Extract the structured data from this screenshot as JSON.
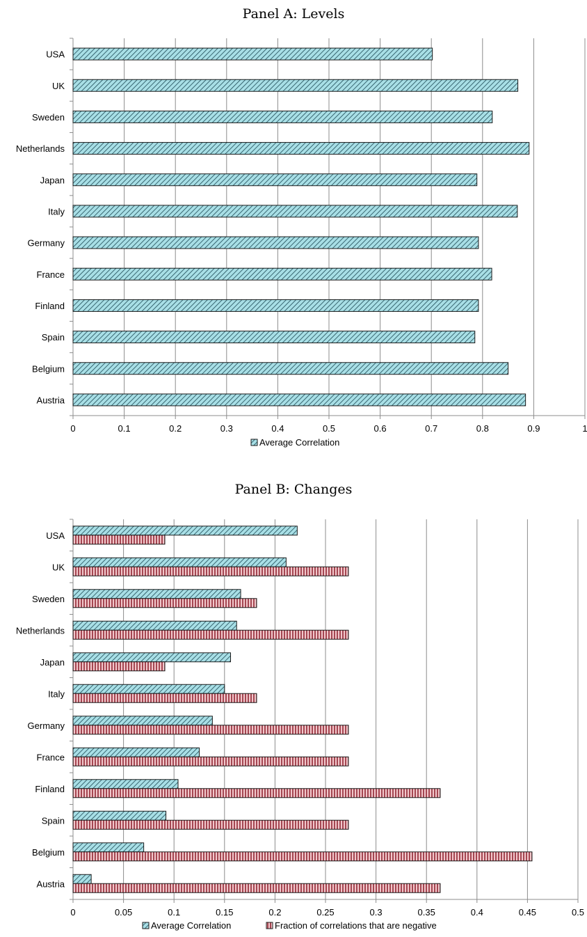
{
  "chart_data": [
    {
      "type": "bar",
      "orientation": "horizontal",
      "title": "Panel A: Levels",
      "xlim": [
        0,
        1
      ],
      "xticks": [
        "0",
        "0.1",
        "0.2",
        "0.3",
        "0.4",
        "0.5",
        "0.6",
        "0.7",
        "0.8",
        "0.9",
        "1"
      ],
      "grid": "vertical",
      "legend_position": "bottom",
      "categories": [
        "USA",
        "UK",
        "Sweden",
        "Netherlands",
        "Japan",
        "Italy",
        "Germany",
        "France",
        "Finland",
        "Spain",
        "Belgium",
        "Austria"
      ],
      "series": [
        {
          "name": "Average Correlation",
          "color": "#9fd8df",
          "values": [
            0.702,
            0.869,
            0.819,
            0.891,
            0.789,
            0.868,
            0.792,
            0.818,
            0.792,
            0.785,
            0.85,
            0.884
          ]
        }
      ]
    },
    {
      "type": "bar",
      "orientation": "horizontal",
      "title": "Panel B: Changes",
      "xlim": [
        0,
        0.5
      ],
      "xticks": [
        "0",
        "0.05",
        "0.1",
        "0.15",
        "0.2",
        "0.25",
        "0.3",
        "0.35",
        "0.4",
        "0.45",
        "0.5"
      ],
      "grid": "vertical",
      "legend_position": "bottom",
      "categories": [
        "USA",
        "UK",
        "Sweden",
        "Netherlands",
        "Japan",
        "Italy",
        "Germany",
        "France",
        "Finland",
        "Spain",
        "Belgium",
        "Austria"
      ],
      "series": [
        {
          "name": "Average Correlation",
          "color": "#9fd8df",
          "values": [
            0.222,
            0.211,
            0.166,
            0.162,
            0.156,
            0.15,
            0.138,
            0.125,
            0.104,
            0.092,
            0.07,
            0.018
          ]
        },
        {
          "name": "Fraction of correlations that are negative",
          "color": "#d98894",
          "values": [
            0.0909,
            0.2727,
            0.1818,
            0.2727,
            0.0909,
            0.1818,
            0.2727,
            0.2727,
            0.3636,
            0.2727,
            0.4545,
            0.3636
          ]
        }
      ]
    }
  ]
}
